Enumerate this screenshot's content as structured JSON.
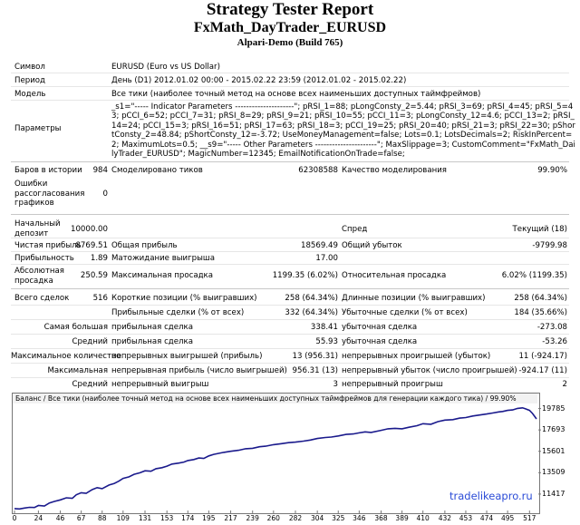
{
  "header": {
    "title": "Strategy Tester Report",
    "subtitle": "FxMath_DayTrader_EURUSD",
    "server": "Alpari-Demo (Build 765)"
  },
  "info": {
    "symbol_label": "Символ",
    "symbol_value": "EURUSD (Euro vs US Dollar)",
    "period_label": "Период",
    "period_value": "День (D1) 2012.01.02 00:00 - 2015.02.22 23:59 (2012.01.02 - 2015.02.22)",
    "model_label": "Модель",
    "model_value": "Все тики (наиболее точный метод на основе всех наименьших доступных таймфреймов)",
    "params_label": "Параметры",
    "params_value": "_s1=\"----- Indicator Parameters ---------------------\"; pRSI_1=88; pLongConsty_2=5.44; pRSI_3=69; pRSI_4=45; pRSI_5=43; pCCI_6=52; pCCI_7=31; pRSI_8=29; pRSI_9=21; pRSI_10=55; pCCI_11=3; pLongConsty_12=4.6; pCCI_13=2; pRSI_14=24; pCCI_15=3; pRSI_16=51; pRSI_17=63; pRSI_18=3; pCCI_19=25; pRSI_20=40; pRSI_21=3; pRSI_22=30; pShortConsty_2=48.84; pShortConsty_12=-3.72; UseMoneyManagement=false; Lots=0.1; LotsDecimals=2; RiskInPercent=2; MaximumLots=0.5; __s9=\"----- Other Parameters ----------------------\"; MaxSlippage=3; CustomComment=\"FxMath_DailyTrader_EURUSD\"; MagicNumber=12345; EmailNotificationOnTrade=false;"
  },
  "stats": {
    "bars_label": "Баров в истории",
    "bars_value": "984",
    "ticks_label": "Смоделировано тиков",
    "ticks_value": "62308588",
    "quality_label": "Качество моделирования",
    "quality_value": "99.90%",
    "errors_label": "Ошибки рассогласования графиков",
    "errors_value": "0",
    "deposit_label": "Начальный депозит",
    "deposit_value": "10000.00",
    "spread_label": "Спред",
    "spread_value": "Текущий (18)",
    "net_label": "Чистая прибыль",
    "net_value": "8769.51",
    "gross_profit_label": "Общая прибыль",
    "gross_profit_value": "18569.49",
    "gross_loss_label": "Общий убыток",
    "gross_loss_value": "-9799.98",
    "pf_label": "Прибыльность",
    "pf_value": "1.89",
    "expected_label": "Матожидание выигрыша",
    "expected_value": "17.00",
    "absdd_label": "Абсолютная просадка",
    "absdd_value": "250.59",
    "maxdd_label": "Максимальная просадка",
    "maxdd_value": "1199.35 (6.02%)",
    "reldd_label": "Относительная просадка",
    "reldd_value": "6.02% (1199.35)",
    "trades_label": "Всего сделок",
    "trades_value": "516",
    "short_label": "Короткие позиции (% выигравших)",
    "short_value": "258 (64.34%)",
    "long_label": "Длинные позиции (% выигравших)",
    "long_value": "258 (64.34%)",
    "profit_trades_label": "Прибыльные сделки (% от всех)",
    "profit_trades_value": "332 (64.34%)",
    "loss_trades_label": "Убыточные сделки (% от всех)",
    "loss_trades_value": "184 (35.66%)",
    "largest_label": "Самая большая",
    "largest_profit_label": "прибыльная сделка",
    "largest_profit_value": "338.41",
    "largest_loss_label": "убыточная сделка",
    "largest_loss_value": "-273.08",
    "average_label": "Средний",
    "avg_profit_label": "прибыльная сделка",
    "avg_profit_value": "55.93",
    "avg_loss_label": "убыточная сделка",
    "avg_loss_value": "-53.26",
    "maxcount_label": "Максимальное количество",
    "maxcons_wins_label": "непрерывных выигрышей (прибыль)",
    "maxcons_wins_value": "13 (956.31)",
    "maxcons_losses_label": "непрерывных проигрышей (убыток)",
    "maxcons_losses_value": "11 (-924.17)",
    "maximal_label": "Максимальная",
    "maxprofit_label": "непрерывная прибыль (число выигрышей)",
    "maxprofit_value": "956.31 (13)",
    "maxloss_label": "непрерывный убыток (число проигрышей)",
    "maxloss_value": "-924.17 (11)",
    "avgcons_label": "Средний",
    "avgcons_wins_label": "непрерывный выигрыш",
    "avgcons_wins_value": "3",
    "avgcons_losses_label": "непрерывный проигрыш",
    "avgcons_losses_value": "2"
  },
  "chart_data": {
    "type": "line",
    "title": "Баланс / Все тики (наиболее точный метод на основе всех наименьших доступных таймфреймов для генерации каждого тика) / 99.90%",
    "x_ticks": [
      "0",
      "24",
      "46",
      "67",
      "88",
      "109",
      "131",
      "153",
      "174",
      "195",
      "217",
      "239",
      "260",
      "282",
      "304",
      "325",
      "346",
      "368",
      "389",
      "410",
      "432",
      "453",
      "474",
      "495",
      "517"
    ],
    "y_ticks": [
      "19785",
      "17693",
      "15601",
      "13509",
      "11417"
    ],
    "ylim": [
      9900,
      20100
    ],
    "xlim": [
      0,
      524
    ],
    "color": "#1a1a8c",
    "series": [
      {
        "x": [
          0,
          5,
          10,
          15,
          20,
          24,
          30,
          35,
          40,
          46,
          52,
          58,
          62,
          67,
          72,
          78,
          83,
          88,
          95,
          100,
          105,
          109,
          115,
          120,
          126,
          131,
          137,
          142,
          148,
          153,
          158,
          165,
          170,
          174,
          180,
          185,
          190,
          195,
          200,
          205,
          210,
          217,
          225,
          232,
          239,
          246,
          252,
          260,
          268,
          275,
          282,
          290,
          297,
          304,
          312,
          318,
          325,
          333,
          340,
          346,
          352,
          358,
          368,
          375,
          382,
          389,
          396,
          404,
          410,
          418,
          425,
          432,
          440,
          447,
          453,
          460,
          467,
          474,
          480,
          486,
          490,
          495,
          500,
          505,
          510,
          513,
          517,
          520,
          524
        ],
        "values": [
          10000,
          9960,
          10050,
          10120,
          10100,
          10300,
          10250,
          10550,
          10700,
          10850,
          11050,
          11000,
          11350,
          11550,
          11500,
          11850,
          12050,
          11950,
          12300,
          12450,
          12700,
          12950,
          13100,
          13350,
          13500,
          13700,
          13650,
          13900,
          14000,
          14150,
          14350,
          14450,
          14550,
          14700,
          14800,
          14950,
          14900,
          15150,
          15300,
          15400,
          15500,
          15600,
          15700,
          15850,
          15900,
          16050,
          16100,
          16250,
          16350,
          16450,
          16500,
          16600,
          16700,
          16850,
          16950,
          17000,
          17100,
          17250,
          17300,
          17400,
          17500,
          17450,
          17650,
          17800,
          17850,
          17800,
          17950,
          18100,
          18300,
          18250,
          18500,
          18650,
          18700,
          18850,
          18900,
          19050,
          19150,
          19250,
          19350,
          19450,
          19500,
          19600,
          19650,
          19800,
          19850,
          19750,
          19600,
          19300,
          18770
        ]
      }
    ]
  },
  "watermark": "tradelikeapro.ru"
}
